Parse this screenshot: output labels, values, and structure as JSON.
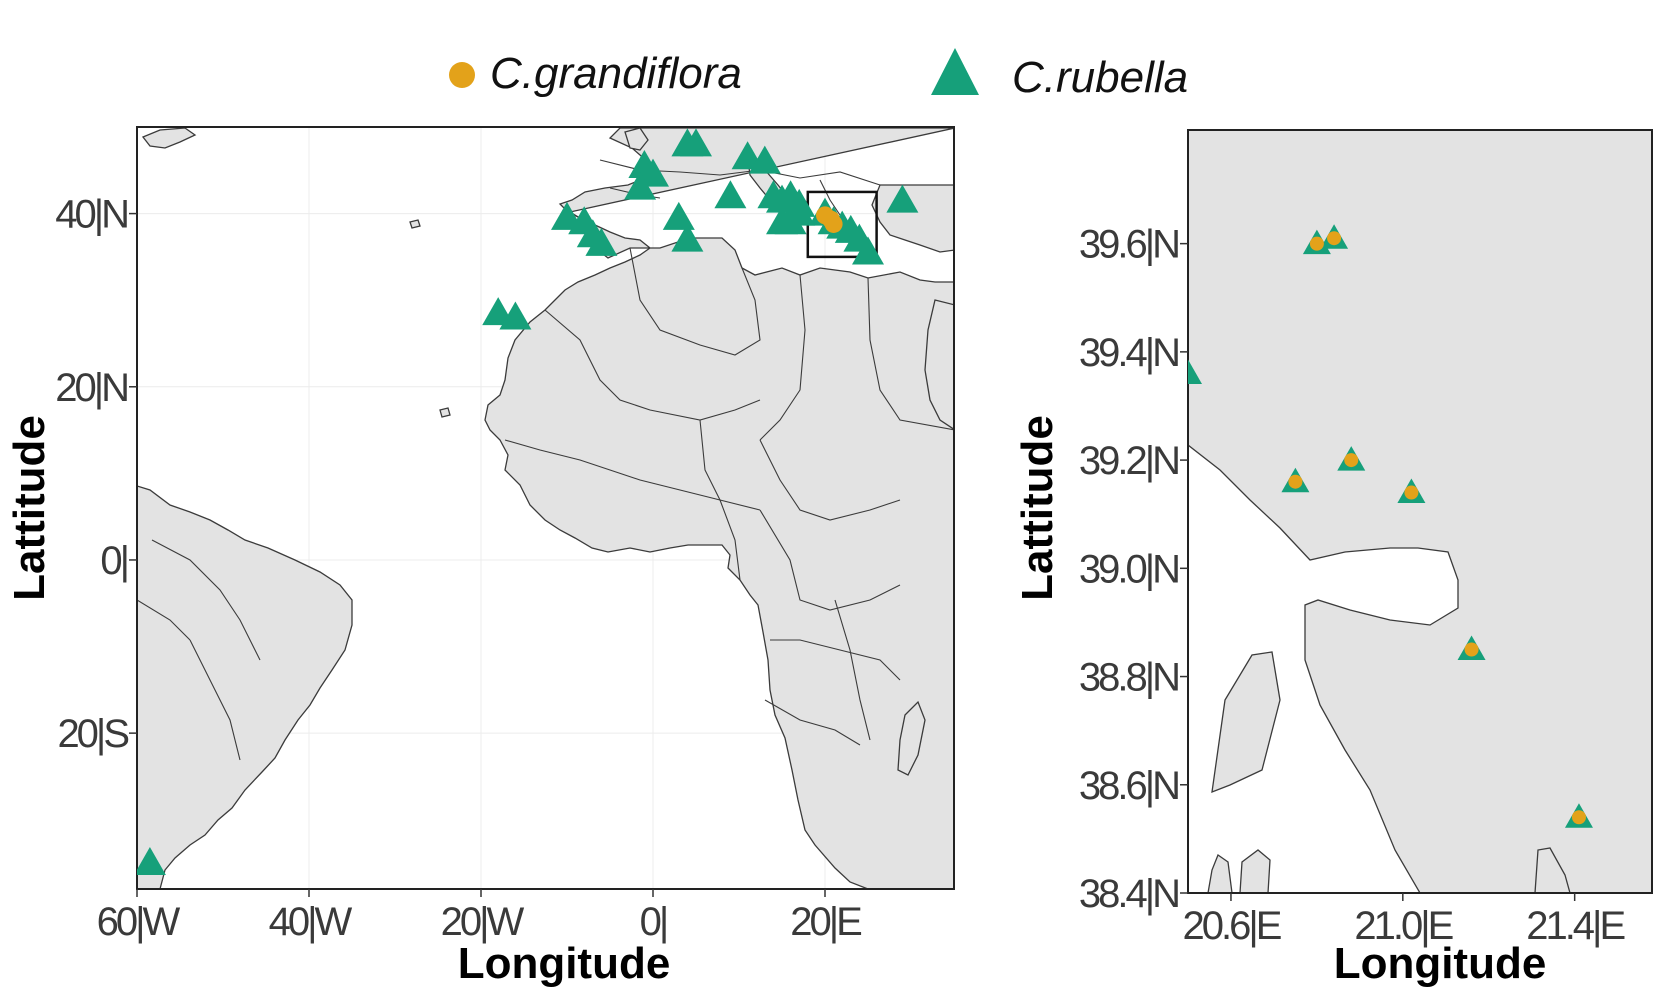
{
  "legend": {
    "grandiflora_label": "C.grandiflora",
    "rubella_label": "C.rubella"
  },
  "colors": {
    "grandiflora": "#E3A21A",
    "rubella": "#16A07A",
    "land": "#E3E3E3",
    "border": "#3B3B3B"
  },
  "chart_data": [
    {
      "type": "scatter",
      "title": "",
      "xlabel": "Longitude",
      "ylabel": "Lattitude",
      "xlim": [
        -60,
        35
      ],
      "ylim": [
        -38,
        50
      ],
      "x_ticks": [
        {
          "value": -60,
          "label": "60|W"
        },
        {
          "value": -40,
          "label": "40|W"
        },
        {
          "value": -20,
          "label": "20|W"
        },
        {
          "value": 0,
          "label": "0|"
        },
        {
          "value": 20,
          "label": "20|E"
        }
      ],
      "y_ticks": [
        {
          "value": 40,
          "label": "40|N"
        },
        {
          "value": 20,
          "label": "20|N"
        },
        {
          "value": 0,
          "label": "0|"
        },
        {
          "value": -20,
          "label": "20|S"
        }
      ],
      "inset_box": {
        "lon": [
          18,
          26
        ],
        "lat": [
          35,
          42.5
        ]
      },
      "series": [
        {
          "name": "C.rubella",
          "marker": "triangle",
          "points": [
            [
              -1,
              45.5
            ],
            [
              0,
              44.5
            ],
            [
              -1.5,
              43
            ],
            [
              4,
              48
            ],
            [
              5,
              48
            ],
            [
              11,
              46.5
            ],
            [
              13,
              46
            ],
            [
              9,
              42
            ],
            [
              14,
              42
            ],
            [
              15,
              41.5
            ],
            [
              16,
              42
            ],
            [
              17,
              41
            ],
            [
              15,
              39
            ],
            [
              16,
              39
            ],
            [
              17,
              40
            ],
            [
              -10,
              39.5
            ],
            [
              -8,
              39
            ],
            [
              -7,
              37.5
            ],
            [
              -6,
              36.5
            ],
            [
              3,
              39.5
            ],
            [
              4,
              37
            ],
            [
              20,
              40
            ],
            [
              21,
              39
            ],
            [
              22,
              38.5
            ],
            [
              23,
              38
            ],
            [
              24,
              37
            ],
            [
              25,
              35.5
            ],
            [
              29,
              41.5
            ],
            [
              -18,
              28.5
            ],
            [
              -16,
              28
            ],
            [
              -58.5,
              -35
            ]
          ]
        },
        {
          "name": "C.grandiflora",
          "marker": "circle",
          "points": [
            [
              20,
              39.8
            ],
            [
              20.7,
              39.3
            ],
            [
              21,
              38.8
            ]
          ]
        }
      ]
    },
    {
      "type": "scatter",
      "title": "",
      "xlabel": "Longitude",
      "ylabel": "Lattitude",
      "xlim": [
        20.5,
        21.58
      ],
      "ylim": [
        38.4,
        39.81
      ],
      "x_ticks": [
        {
          "value": 20.6,
          "label": "20.6|E"
        },
        {
          "value": 21.0,
          "label": "21.0|E"
        },
        {
          "value": 21.4,
          "label": "21.4|E"
        }
      ],
      "y_ticks": [
        {
          "value": 39.6,
          "label": "39.6|N"
        },
        {
          "value": 39.4,
          "label": "39.4|N"
        },
        {
          "value": 39.2,
          "label": "39.2|N"
        },
        {
          "value": 39.0,
          "label": "39.0|N"
        },
        {
          "value": 38.8,
          "label": "38.8|N"
        },
        {
          "value": 38.6,
          "label": "38.6|N"
        },
        {
          "value": 38.4,
          "label": "38.4|N"
        }
      ],
      "series": [
        {
          "name": "C.rubella",
          "marker": "triangle",
          "points": [
            [
              20.8,
              39.6
            ],
            [
              20.84,
              39.61
            ],
            [
              20.75,
              39.16
            ],
            [
              20.88,
              39.2
            ],
            [
              21.02,
              39.14
            ],
            [
              21.16,
              38.85
            ],
            [
              21.41,
              38.54
            ],
            [
              20.5,
              39.36
            ]
          ]
        },
        {
          "name": "C.grandiflora",
          "marker": "circle",
          "points": [
            [
              20.8,
              39.6
            ],
            [
              20.84,
              39.61
            ],
            [
              20.75,
              39.16
            ],
            [
              20.88,
              39.2
            ],
            [
              21.02,
              39.14
            ],
            [
              21.16,
              38.85
            ],
            [
              21.41,
              38.54
            ]
          ]
        }
      ]
    }
  ]
}
